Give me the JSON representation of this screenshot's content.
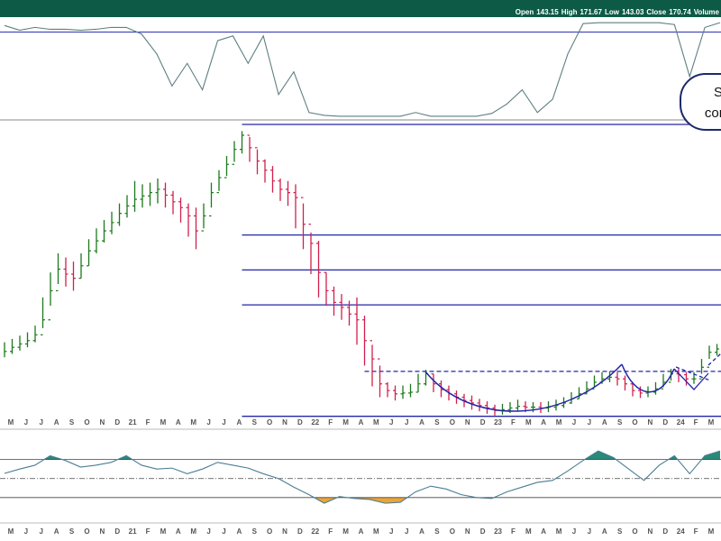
{
  "header": {
    "items": [
      "Open",
      143.15,
      "High",
      171.67,
      "Low",
      143.03,
      "Close",
      170.74,
      "Volume"
    ]
  },
  "annotation": {
    "lines": [
      "S",
      "con"
    ]
  },
  "chart_data": [
    {
      "type": "line",
      "color": "#5f7f80",
      "ylim": [
        0,
        103
      ],
      "levels": [
        90
      ],
      "level_color": "#2326a8",
      "values": [
        97,
        92,
        95,
        93,
        93,
        92,
        93,
        95,
        95,
        88,
        67,
        33,
        57,
        29,
        81,
        86,
        57,
        86,
        24,
        48,
        5,
        2,
        1,
        1,
        1,
        1,
        1,
        5,
        1,
        1,
        1,
        1,
        4,
        14,
        29,
        5,
        19,
        67,
        99,
        100,
        100,
        100,
        100,
        100,
        98,
        43,
        95,
        100
      ]
    },
    {
      "type": "ohlc",
      "up_color": "#1b7a1b",
      "down_color": "#d21f4c",
      "ylim": [
        80,
        440
      ],
      "level_color": "#2326a8",
      "categories": [
        "M",
        "J",
        "J",
        "A",
        "S",
        "O",
        "N",
        "D",
        "21",
        "F",
        "M",
        "A",
        "M",
        "J",
        "J",
        "A",
        "S",
        "O",
        "N",
        "D",
        "22",
        "F",
        "M",
        "A",
        "M",
        "J",
        "J",
        "A",
        "S",
        "O",
        "N",
        "D",
        "23",
        "F",
        "M",
        "A",
        "M",
        "J",
        "J",
        "A",
        "S",
        "O",
        "N",
        "D",
        "24",
        "F",
        "M"
      ],
      "levels": [
        {
          "value": 440,
          "from": 31
        },
        {
          "value": 307,
          "from": 31
        },
        {
          "value": 265,
          "from": 31
        },
        {
          "value": 223,
          "from": 31
        },
        {
          "value": 143,
          "from": 47,
          "dashed": true
        },
        {
          "value": 89,
          "from": 31
        }
      ],
      "close": [
        167,
        172,
        176,
        180,
        187,
        205,
        240,
        266,
        260,
        255,
        270,
        288,
        300,
        312,
        322,
        333,
        342,
        350,
        354,
        358,
        362,
        355,
        347,
        340,
        330,
        312,
        330,
        358,
        376,
        392,
        410,
        427,
        412,
        396,
        385,
        372,
        362,
        358,
        352,
        320,
        297,
        262,
        240,
        226,
        220,
        212,
        205,
        180,
        158,
        128,
        120,
        116,
        117,
        118,
        128,
        140,
        128,
        121,
        116,
        112,
        108,
        105,
        102,
        99,
        96,
        97,
        99,
        101,
        100,
        100,
        99,
        100,
        102,
        105,
        110,
        116,
        122,
        130,
        134,
        136,
        134,
        128,
        120,
        117,
        118,
        122,
        130,
        140,
        139,
        134,
        134,
        148,
        166,
        170
      ],
      "high": [
        178,
        182,
        186,
        190,
        198,
        232,
        262,
        285,
        280,
        275,
        285,
        302,
        315,
        325,
        335,
        345,
        355,
        372,
        368,
        370,
        375,
        370,
        360,
        352,
        345,
        340,
        345,
        370,
        385,
        402,
        420,
        432,
        425,
        410,
        398,
        390,
        375,
        372,
        368,
        345,
        310,
        300,
        262,
        245,
        236,
        228,
        232,
        210,
        175,
        150,
        130,
        126,
        126,
        128,
        140,
        145,
        140,
        132,
        126,
        120,
        116,
        114,
        110,
        107,
        103,
        104,
        106,
        109,
        107,
        106,
        106,
        107,
        109,
        112,
        118,
        124,
        131,
        138,
        142,
        143,
        142,
        138,
        130,
        125,
        125,
        130,
        140,
        146,
        147,
        142,
        142,
        158,
        174,
        176
      ],
      "low": [
        160,
        164,
        168,
        172,
        178,
        195,
        222,
        248,
        245,
        240,
        255,
        270,
        285,
        298,
        308,
        318,
        328,
        335,
        340,
        342,
        345,
        340,
        332,
        322,
        305,
        290,
        315,
        340,
        360,
        378,
        395,
        405,
        395,
        380,
        370,
        358,
        348,
        342,
        315,
        290,
        260,
        232,
        222,
        210,
        205,
        198,
        175,
        150,
        125,
        112,
        112,
        108,
        110,
        112,
        118,
        126,
        118,
        112,
        108,
        104,
        100,
        97,
        95,
        92,
        90,
        91,
        93,
        95,
        94,
        94,
        93,
        94,
        96,
        99,
        104,
        110,
        116,
        124,
        128,
        130,
        126,
        120,
        113,
        111,
        112,
        115,
        124,
        132,
        130,
        126,
        128,
        140,
        158,
        162
      ]
    },
    {
      "type": "line",
      "color": "#4a7d95",
      "ylim": [
        -2.1,
        2.5
      ],
      "upper": 1,
      "mid": 0,
      "lower": -1,
      "above_color": "#2a8a78",
      "below_color": "#eba437",
      "values": [
        0.27,
        0.5,
        0.7,
        1.2,
        0.95,
        0.6,
        0.7,
        0.85,
        1.2,
        0.7,
        0.5,
        0.55,
        0.25,
        0.5,
        0.85,
        0.7,
        0.55,
        0.25,
        0,
        -0.45,
        -0.85,
        -1.3,
        -0.95,
        -1.05,
        -1.1,
        -1.3,
        -1.25,
        -0.7,
        -0.4,
        -0.55,
        -0.85,
        -1.0,
        -1.05,
        -0.7,
        -0.45,
        -0.2,
        -0.1,
        0.4,
        0.95,
        1.45,
        1.1,
        0.5,
        -0.1,
        0.7,
        1.2,
        0.25,
        1.2,
        1.45
      ]
    }
  ]
}
